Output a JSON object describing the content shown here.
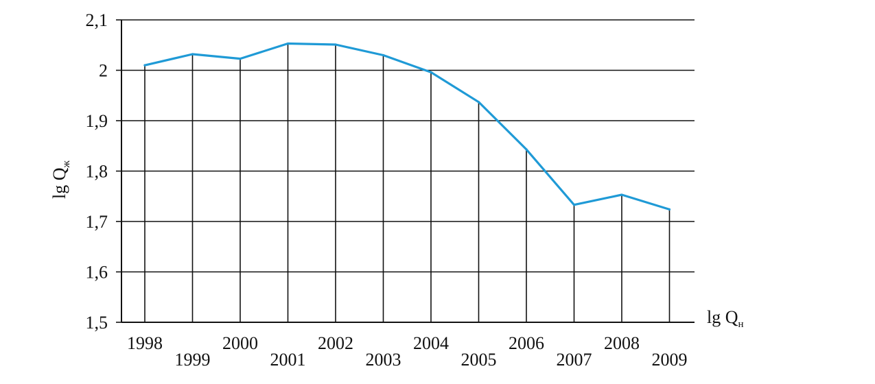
{
  "chart_data": {
    "type": "line",
    "x": [
      "1998",
      "1999",
      "2000",
      "2001",
      "2002",
      "2003",
      "2004",
      "2005",
      "2006",
      "2007",
      "2008",
      "2009"
    ],
    "series": [
      {
        "values": [
          2.01,
          2.032,
          2.023,
          2.053,
          2.051,
          2.03,
          1.996,
          1.937,
          1.843,
          1.733,
          1.753,
          1.724
        ],
        "color": "#1f9ad6"
      }
    ],
    "ylim": [
      1.5,
      2.1
    ],
    "yticks": [
      {
        "value": 1.5,
        "label": "1,5"
      },
      {
        "value": 1.6,
        "label": "1,6"
      },
      {
        "value": 1.7,
        "label": "1,7"
      },
      {
        "value": 1.8,
        "label": "1,8"
      },
      {
        "value": 1.9,
        "label": "1,9"
      },
      {
        "value": 2.0,
        "label": "2"
      },
      {
        "value": 2.1,
        "label": "2,1"
      }
    ],
    "ylabel": {
      "main": "lg Q",
      "sub": "ж"
    },
    "xlabel": {
      "main": "lg Q",
      "sub": "н"
    },
    "grid": "horizontal",
    "drop_lines": true,
    "tick_label_layout": "staggered"
  }
}
